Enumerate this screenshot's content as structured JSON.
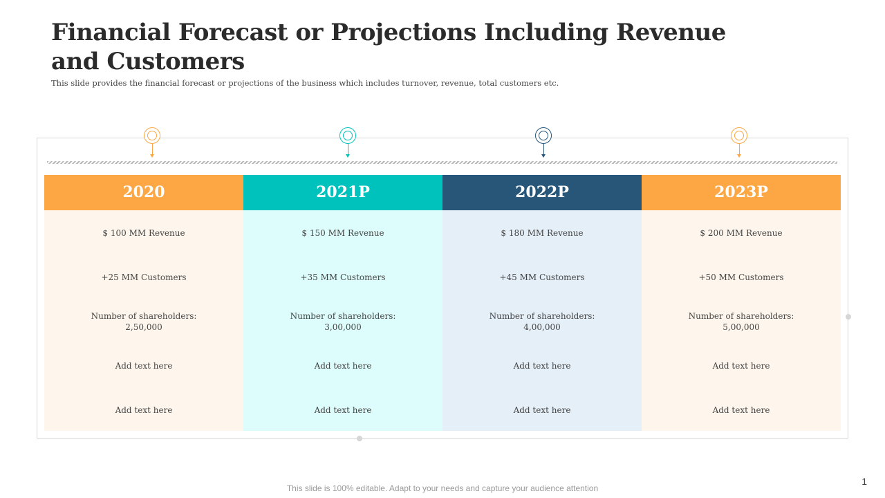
{
  "header": {
    "title": "Financial Forecast or Projections Including Revenue and Customers",
    "subtitle": "This slide provides the financial forecast or projections of the business which includes turnover, revenue, total customers etc."
  },
  "colors": {
    "orange": "#fca744",
    "teal": "#00c2bc",
    "navy": "#275679",
    "orange_bg": "#fef6ec",
    "teal_bg": "#dcfdfc",
    "navy_bg": "#e5eff8"
  },
  "columns": [
    {
      "year": "2020",
      "revenue": "$ 100 MM Revenue",
      "customers": "+25 MM Customers",
      "shareholders_label": "Number of shareholders:",
      "shareholders_value": "2,50,000",
      "text1": "Add text here",
      "text2": "Add text here"
    },
    {
      "year": "2021P",
      "revenue": "$ 150 MM Revenue",
      "customers": "+35 MM Customers",
      "shareholders_label": "Number of shareholders:",
      "shareholders_value": "3,00,000",
      "text1": "Add text here",
      "text2": "Add text here"
    },
    {
      "year": "2022P",
      "revenue": "$ 180 MM Revenue",
      "customers": "+45 MM Customers",
      "shareholders_label": "Number of shareholders:",
      "shareholders_value": "4,00,000",
      "text1": "Add text here",
      "text2": "Add text here"
    },
    {
      "year": "2023P",
      "revenue": "$ 200 MM Revenue",
      "customers": "+50 MM Customers",
      "shareholders_label": "Number of shareholders:",
      "shareholders_value": "5,00,000",
      "text1": "Add text here",
      "text2": "Add text here"
    }
  ],
  "footer": {
    "note": "This slide is 100% editable. Adapt to your needs and capture your audience attention",
    "page_number": "1"
  }
}
